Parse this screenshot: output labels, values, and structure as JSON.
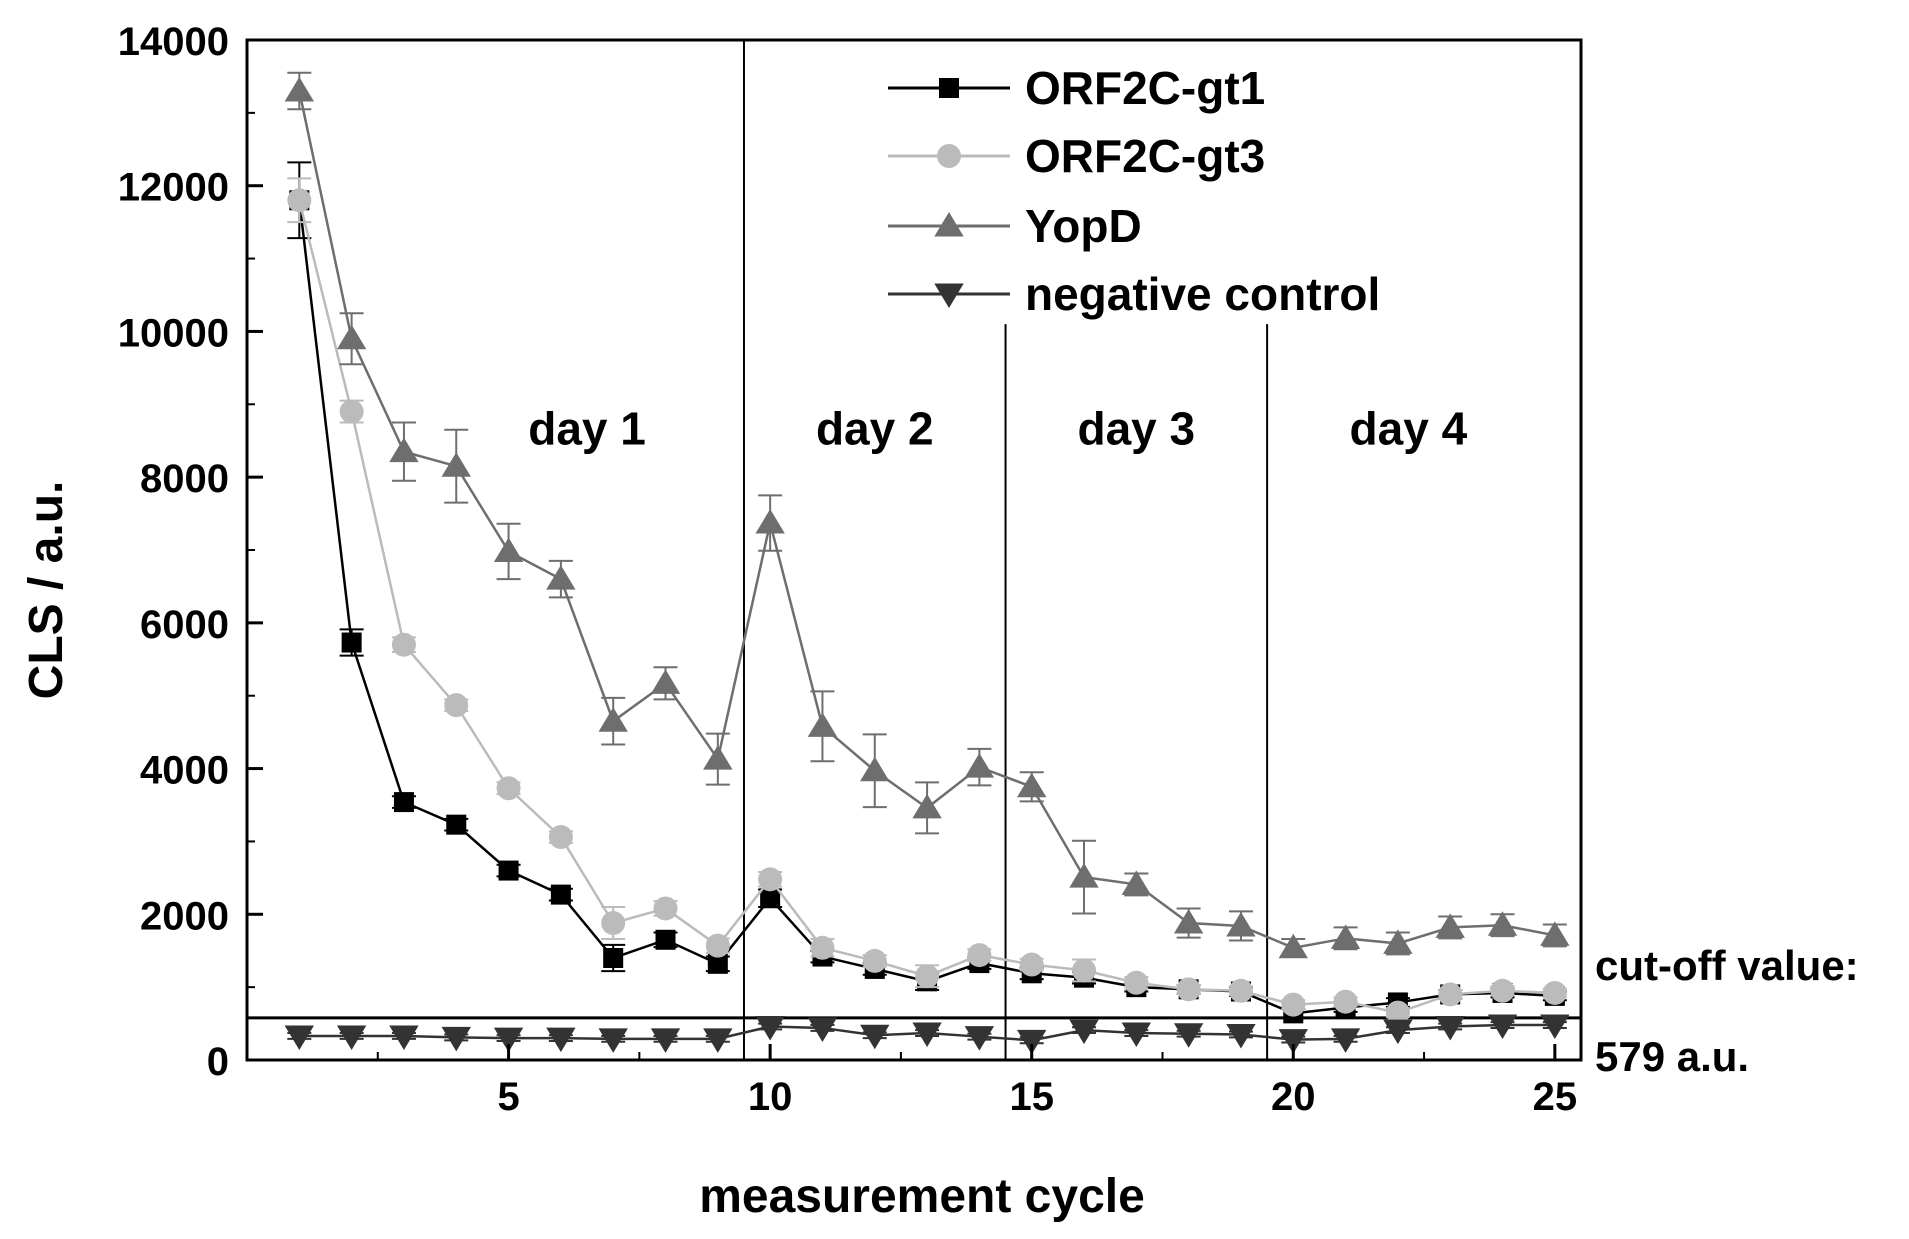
{
  "chart_data": {
    "type": "line",
    "xlabel": "measurement cycle",
    "ylabel": "CLS / a.u.",
    "xlim": [
      0,
      25.5
    ],
    "ylim": [
      0,
      14000
    ],
    "x_ticks": [
      5,
      10,
      15,
      20,
      25
    ],
    "y_ticks": [
      0,
      2000,
      4000,
      6000,
      8000,
      10000,
      12000,
      14000
    ],
    "x": [
      1,
      2,
      3,
      4,
      5,
      6,
      7,
      8,
      9,
      10,
      11,
      12,
      13,
      14,
      15,
      16,
      17,
      18,
      19,
      20,
      21,
      22,
      23,
      24,
      25
    ],
    "series": [
      {
        "name": "ORF2C-gt1",
        "marker": "square",
        "color": "#000000",
        "values": [
          11800,
          5730,
          3540,
          3230,
          2600,
          2270,
          1400,
          1650,
          1320,
          2220,
          1420,
          1250,
          1080,
          1330,
          1190,
          1130,
          1000,
          970,
          940,
          640,
          720,
          790,
          900,
          920,
          880
        ],
        "errors": [
          520,
          180,
          80,
          80,
          80,
          80,
          180,
          100,
          100,
          120,
          80,
          80,
          120,
          80,
          80,
          80,
          60,
          60,
          60,
          60,
          60,
          60,
          60,
          60,
          60
        ]
      },
      {
        "name": "ORF2C-gt3",
        "marker": "circle",
        "color": "#bbbbbb",
        "values": [
          11800,
          8900,
          5700,
          4870,
          3730,
          3060,
          1880,
          2080,
          1570,
          2480,
          1540,
          1360,
          1150,
          1440,
          1310,
          1230,
          1060,
          970,
          950,
          760,
          800,
          650,
          900,
          950,
          920
        ],
        "errors": [
          300,
          150,
          100,
          80,
          80,
          80,
          220,
          100,
          100,
          100,
          120,
          80,
          150,
          80,
          80,
          150,
          80,
          60,
          60,
          60,
          60,
          60,
          60,
          60,
          60
        ]
      },
      {
        "name": "YopD",
        "marker": "triangle-up",
        "color": "#6e6e6e",
        "values": [
          13300,
          9900,
          8350,
          8150,
          6980,
          6600,
          4650,
          5170,
          4130,
          7370,
          4580,
          3970,
          3460,
          4020,
          3750,
          2510,
          2410,
          1880,
          1840,
          1540,
          1670,
          1600,
          1820,
          1850,
          1710
        ],
        "errors": [
          250,
          350,
          400,
          500,
          380,
          250,
          320,
          220,
          350,
          380,
          480,
          500,
          350,
          250,
          200,
          500,
          150,
          200,
          200,
          120,
          150,
          150,
          150,
          150,
          150
        ]
      },
      {
        "name": "negative control",
        "marker": "triangle-down",
        "color": "#333333",
        "values": [
          330,
          330,
          330,
          310,
          300,
          300,
          290,
          290,
          290,
          460,
          440,
          340,
          370,
          320,
          270,
          410,
          370,
          360,
          350,
          280,
          290,
          410,
          460,
          480,
          480
        ],
        "errors": [
          40,
          40,
          40,
          40,
          40,
          40,
          40,
          40,
          40,
          40,
          40,
          40,
          40,
          40,
          40,
          40,
          40,
          40,
          40,
          40,
          40,
          40,
          40,
          40,
          40
        ]
      }
    ],
    "cutoff": {
      "value": 579,
      "label_line1": "cut-off value:",
      "label_line2": "579 a.u."
    },
    "day_separators": [
      9.5,
      14.5,
      19.5
    ],
    "day_labels": [
      {
        "label": "day 1",
        "x": 6.5
      },
      {
        "label": "day 2",
        "x": 12.0
      },
      {
        "label": "day 3",
        "x": 17.0
      },
      {
        "label": "day 4",
        "x": 22.2
      }
    ],
    "legend_position": "top-right"
  }
}
